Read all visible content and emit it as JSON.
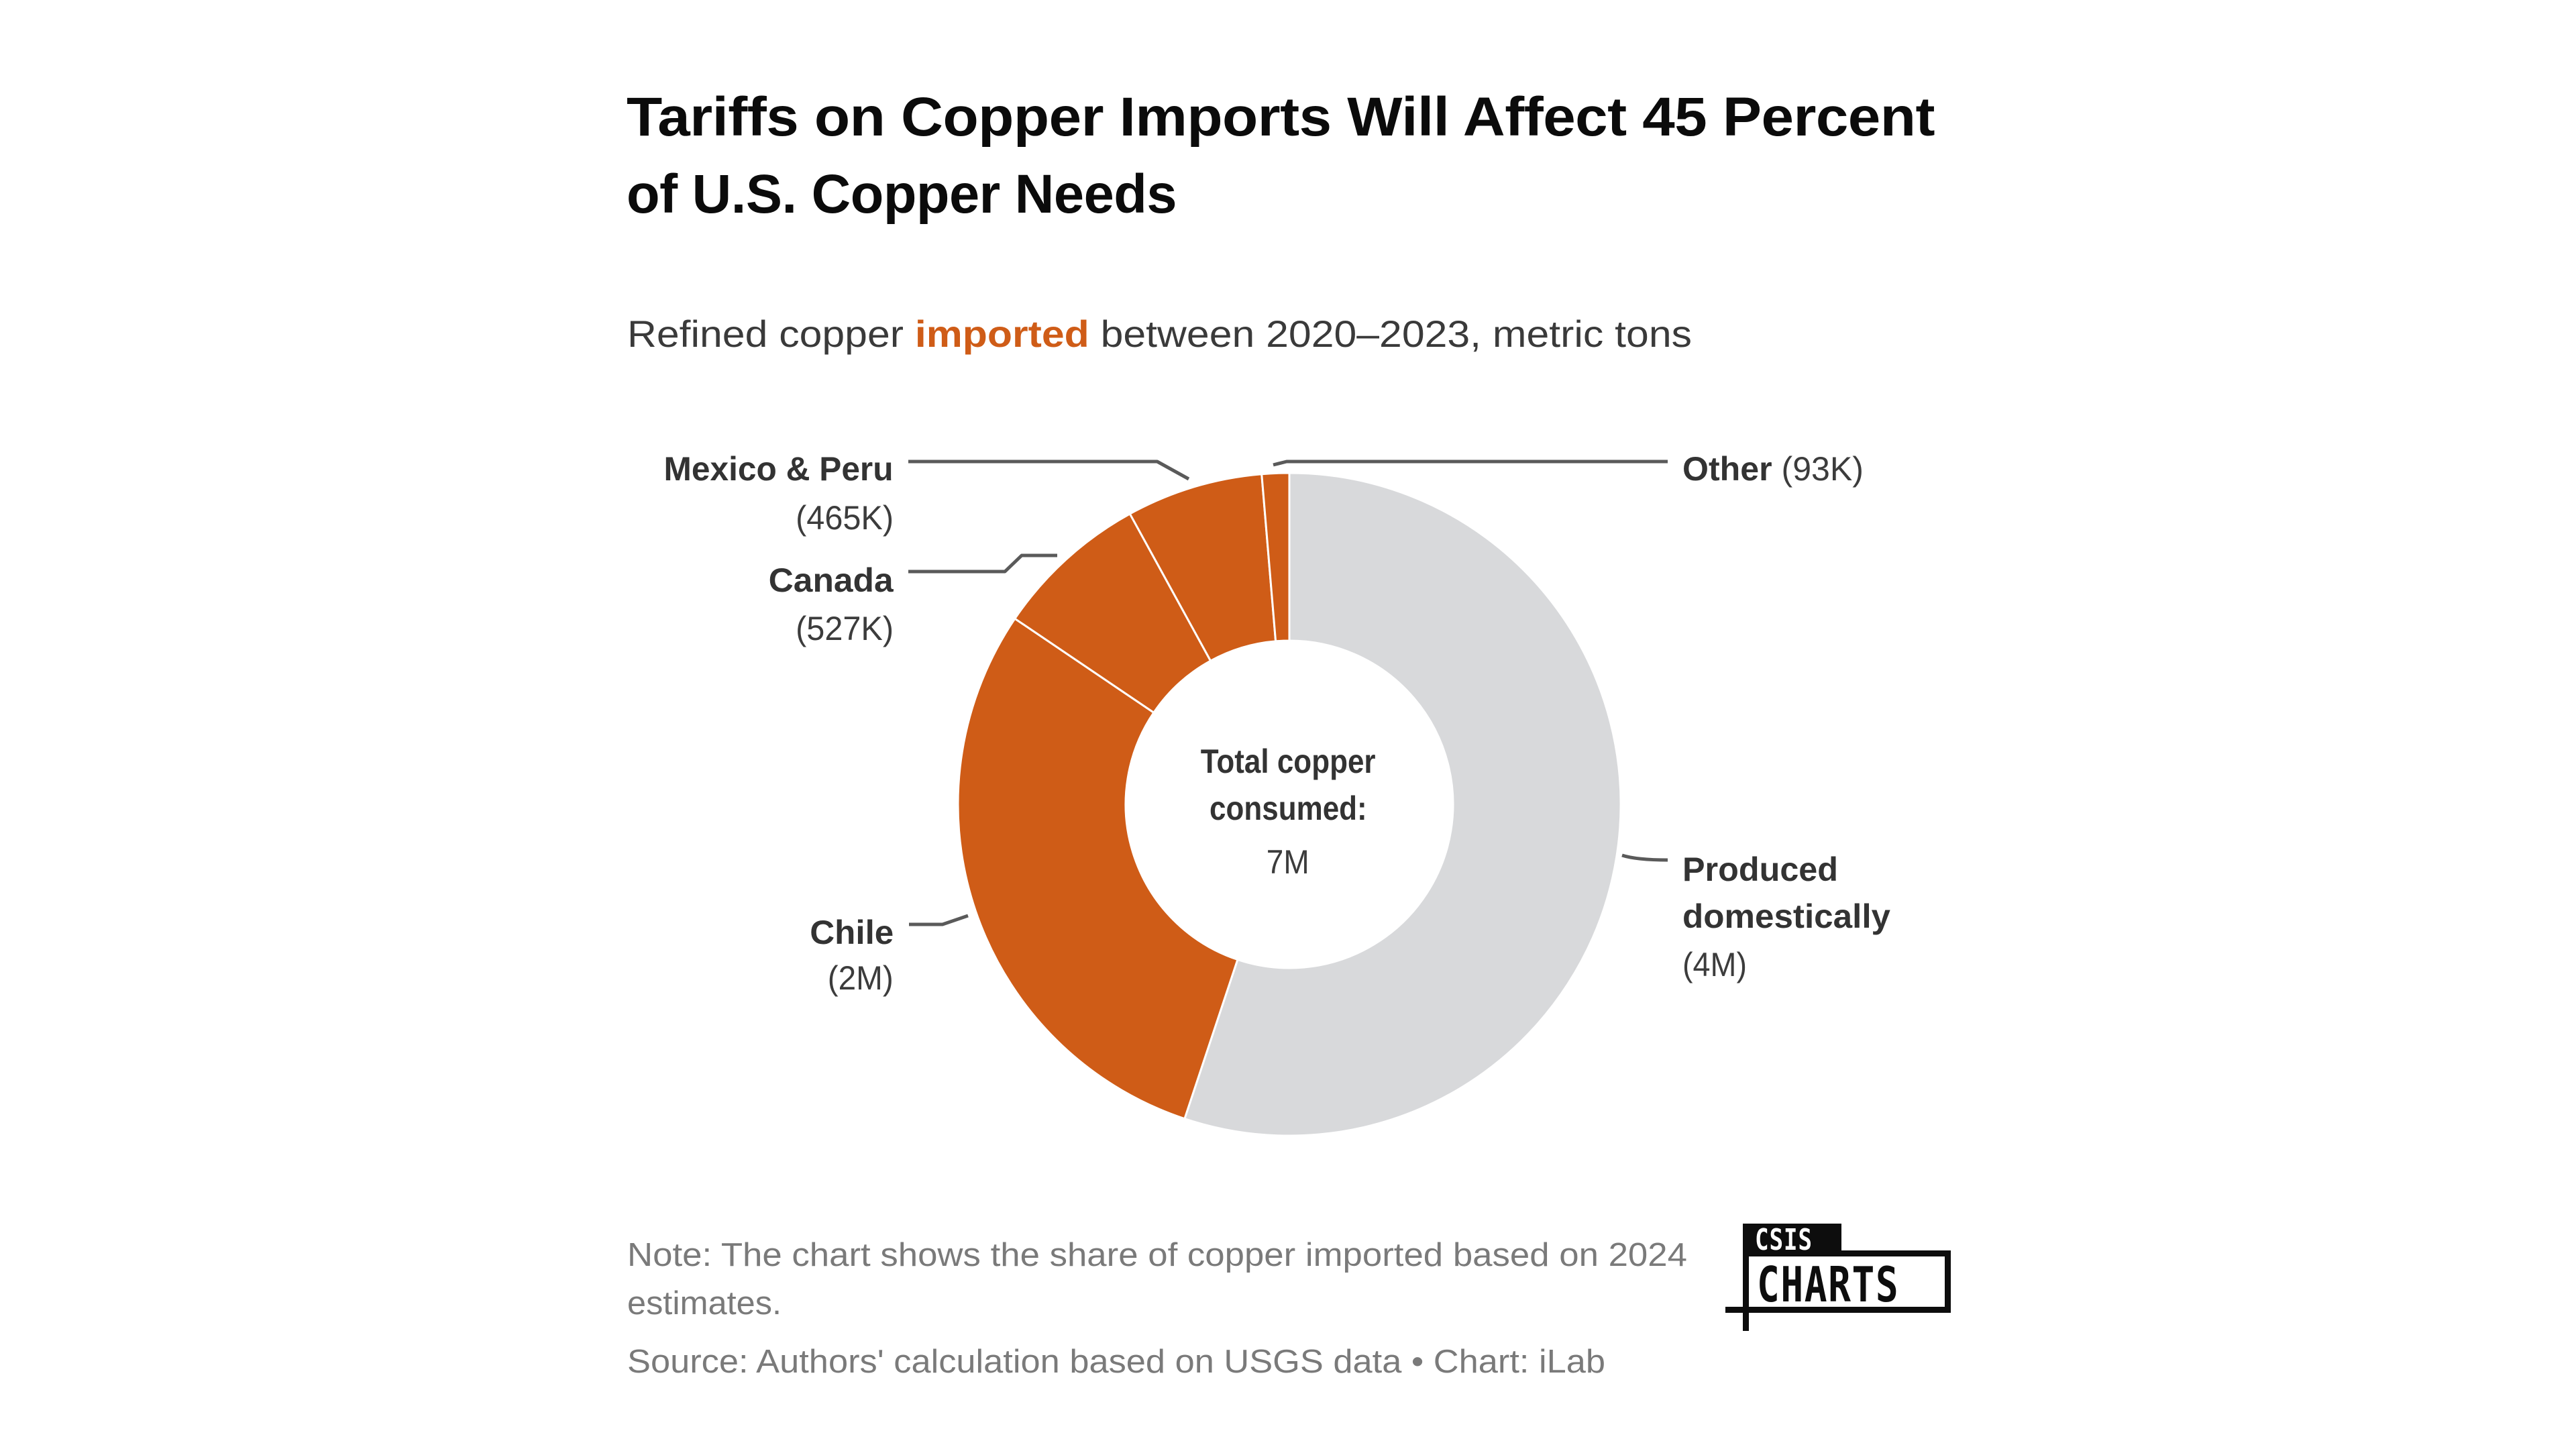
{
  "header": {
    "title_line1": "Tariffs on Copper Imports Will Affect 45 Percent",
    "title_line2": "of U.S. Copper Needs",
    "subtitle_before": "Refined copper",
    "subtitle_highlight": "imported",
    "subtitle_after": "between 2020–2023, metric tons"
  },
  "chart_data": {
    "type": "pie",
    "subtype": "donut",
    "title": "Tariffs on Copper Imports Will Affect 45 Percent of U.S. Copper Needs",
    "subtitle": "Refined copper imported between 2020–2023, metric tons",
    "units": "metric tons",
    "start_angle_deg": 0,
    "direction": "clockwise",
    "slices": [
      {
        "label": "Produced domestically",
        "label_line1": "Produced",
        "label_line2": "domestically",
        "value_label": "(4M)",
        "value": 3850000,
        "color": "#d8d9db",
        "imported": false
      },
      {
        "label": "Chile",
        "value_label": "(2M)",
        "value": 2050000,
        "color": "#cf5c17",
        "imported": true
      },
      {
        "label": "Canada",
        "value_label": "(527K)",
        "value": 527000,
        "color": "#cf5c17",
        "imported": true
      },
      {
        "label": "Mexico & Peru",
        "value_label": "(465K)",
        "value": 465000,
        "color": "#cf5c17",
        "imported": true
      },
      {
        "label": "Other",
        "value_label": "(93K)",
        "value": 93000,
        "color": "#cf5c17",
        "imported": true
      }
    ],
    "center_label_line1": "Total copper",
    "center_label_line2": "consumed:",
    "center_value": "7M",
    "imported_share_percent": 45
  },
  "colors": {
    "accent": "#cf5c17",
    "domestic": "#d8d9db",
    "leader": "#5a5a5a",
    "text": "#333333"
  },
  "footer": {
    "note_line1": "Note: The chart shows the share of copper imported based on 2024",
    "note_line2": "estimates.",
    "source": "Source: Authors' calculation based on USGS data • Chart: iLab"
  },
  "logo": {
    "top": "CSIS",
    "bottom": "CHARTS"
  }
}
